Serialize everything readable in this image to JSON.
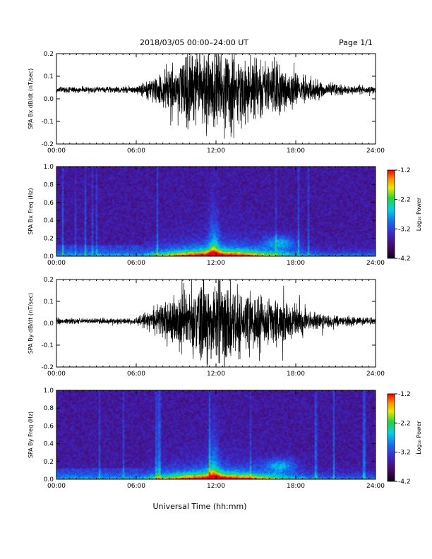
{
  "header": {
    "title": "2018/03/05  00:00–24:00 UT",
    "page": "Page 1/1"
  },
  "footer": {
    "xlabel": "Universal Time (hh:mm)"
  },
  "colorbar": {
    "label": "Log₁₀ Power",
    "ticks": [
      "-1.2",
      "-2.2",
      "-3.2",
      "-4.2"
    ],
    "range": [
      -4.2,
      -1.2
    ]
  },
  "chart_data": [
    {
      "type": "line",
      "panel": "SPA Bx dB/dt",
      "ylabel": "SPA Bx dB/dt (nT/sec)",
      "xlim": [
        0,
        24
      ],
      "ylim": [
        -0.2,
        0.2
      ],
      "x_ticks": [
        "00:00",
        "06:00",
        "12:00",
        "18:00",
        "24:00"
      ],
      "y_ticks": [
        "0.2",
        "0.1",
        "0.0",
        "-0.1",
        "-0.2"
      ],
      "series": [
        {
          "x": [
            0,
            2,
            4,
            6,
            6.5,
            7,
            8,
            9,
            10,
            11,
            12,
            13,
            14,
            15,
            16,
            17,
            18,
            19,
            20,
            21,
            22,
            23,
            24
          ],
          "amplitude": [
            0.012,
            0.012,
            0.012,
            0.015,
            0.03,
            0.05,
            0.08,
            0.12,
            0.16,
            0.19,
            0.2,
            0.18,
            0.14,
            0.12,
            0.12,
            0.1,
            0.07,
            0.05,
            0.035,
            0.025,
            0.02,
            0.018,
            0.015
          ],
          "baseline": 0.04
        }
      ]
    },
    {
      "type": "heatmap",
      "panel": "SPA Bx Freq",
      "ylabel": "SPA Bx Freq (Hz)",
      "xlim": [
        0,
        24
      ],
      "ylim": [
        0.0,
        1.0
      ],
      "x_ticks": [
        "00:00",
        "06:00",
        "12:00",
        "18:00",
        "24:00"
      ],
      "y_ticks": [
        "1.0",
        "0.8",
        "0.6",
        "0.4",
        "0.2",
        "0.0"
      ],
      "colorscale": "Log10 Power",
      "clim": [
        -4.2,
        -1.2
      ],
      "features": {
        "peak_hour": 11.8,
        "secondary_blob_hour": 16.8
      }
    },
    {
      "type": "line",
      "panel": "SPA By dB/dt",
      "ylabel": "SPA By dB/dt (nT/sec)",
      "xlim": [
        0,
        24
      ],
      "ylim": [
        -0.2,
        0.2
      ],
      "x_ticks": [
        "00:00",
        "06:00",
        "12:00",
        "18:00",
        "24:00"
      ],
      "y_ticks": [
        "0.2",
        "0.1",
        "0.0",
        "-0.1",
        "-0.2"
      ],
      "series": [
        {
          "x": [
            0,
            2,
            4,
            6,
            6.5,
            7,
            8,
            9,
            10,
            11,
            12,
            13,
            14,
            15,
            16,
            17,
            18,
            19,
            20,
            21,
            22,
            23,
            24
          ],
          "amplitude": [
            0.012,
            0.012,
            0.012,
            0.015,
            0.03,
            0.05,
            0.08,
            0.12,
            0.16,
            0.19,
            0.2,
            0.18,
            0.14,
            0.12,
            0.12,
            0.1,
            0.07,
            0.05,
            0.035,
            0.025,
            0.02,
            0.018,
            0.015
          ],
          "baseline": 0.01
        }
      ]
    },
    {
      "type": "heatmap",
      "panel": "SPA By Freq",
      "ylabel": "SPA By Freq (Hz)",
      "xlim": [
        0,
        24
      ],
      "ylim": [
        0.0,
        1.0
      ],
      "x_ticks": [
        "00:00",
        "06:00",
        "12:00",
        "18:00",
        "24:00"
      ],
      "y_ticks": [
        "1.0",
        "0.8",
        "0.6",
        "0.4",
        "0.2",
        "0.0"
      ],
      "colorscale": "Log10 Power",
      "clim": [
        -4.2,
        -1.2
      ],
      "features": {
        "peak_hour": 11.8,
        "secondary_blob_hour": 16.8
      }
    }
  ]
}
